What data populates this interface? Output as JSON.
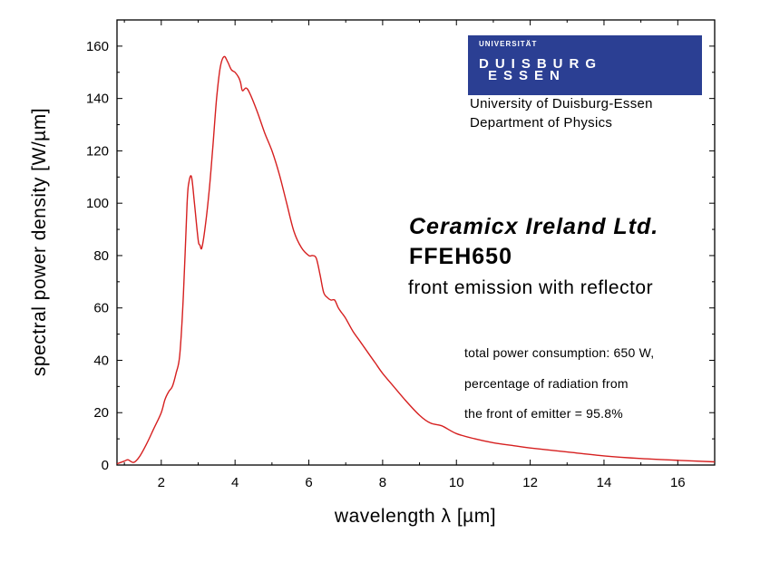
{
  "logo": {
    "small_text": "UNIVERSITÄT",
    "line1": "DUISBURG",
    "line2": "ESSEN",
    "color": "#2b3f93"
  },
  "institution": {
    "line1": "University of Duisburg-Essen",
    "line2": "Department of Physics"
  },
  "annotation": {
    "company": "Ceramicx Ireland Ltd.",
    "model": "FFEH650",
    "description": "front emission with reflector",
    "note_line1": "total power consumption: 650 W,",
    "note_line2": "percentage of radiation from",
    "note_line3": "the front of emitter = 95.8%"
  },
  "chart_data": {
    "type": "line",
    "xlabel": "wavelength λ [µm]",
    "ylabel": "spectral power density [W/µm]",
    "xlim": [
      0.8,
      17
    ],
    "ylim": [
      0,
      170
    ],
    "xticks": [
      2,
      4,
      6,
      8,
      10,
      12,
      14,
      16
    ],
    "yticks": [
      0,
      20,
      40,
      60,
      80,
      100,
      120,
      140,
      160
    ],
    "grid": false,
    "series": [
      {
        "color": "#d62020",
        "x": [
          0.8,
          1.0,
          1.1,
          1.25,
          1.4,
          1.6,
          1.8,
          2.0,
          2.1,
          2.2,
          2.3,
          2.4,
          2.5,
          2.6,
          2.7,
          2.75,
          2.82,
          2.9,
          3.0,
          3.05,
          3.1,
          3.2,
          3.3,
          3.4,
          3.5,
          3.6,
          3.7,
          3.8,
          3.9,
          4.0,
          4.1,
          4.15,
          4.2,
          4.3,
          4.4,
          4.6,
          4.8,
          5.0,
          5.2,
          5.4,
          5.6,
          5.8,
          6.0,
          6.1,
          6.2,
          6.3,
          6.4,
          6.5,
          6.6,
          6.7,
          6.8,
          6.9,
          7.0,
          7.2,
          7.4,
          7.6,
          7.8,
          8.0,
          8.3,
          8.6,
          9.0,
          9.3,
          9.6,
          10.0,
          10.5,
          11.0,
          11.5,
          12.0,
          13.0,
          14.0,
          15.0,
          16.0,
          17.0
        ],
        "values": [
          0.5,
          1.5,
          2,
          1,
          3,
          8,
          14,
          20,
          25,
          28,
          30,
          35,
          42,
          65,
          100,
          108,
          110,
          100,
          86,
          84,
          83,
          92,
          105,
          122,
          140,
          152,
          156,
          154,
          151,
          150,
          148,
          146,
          143,
          144,
          142,
          135,
          127,
          120,
          111,
          100,
          89,
          83,
          80,
          80,
          79,
          73,
          66,
          64,
          63,
          63,
          60,
          58,
          56,
          51,
          47,
          43,
          39,
          35,
          30,
          25,
          19,
          16,
          15,
          12,
          10,
          8.5,
          7.5,
          6.5,
          5,
          3.5,
          2.5,
          1.8,
          1.2
        ]
      }
    ]
  }
}
